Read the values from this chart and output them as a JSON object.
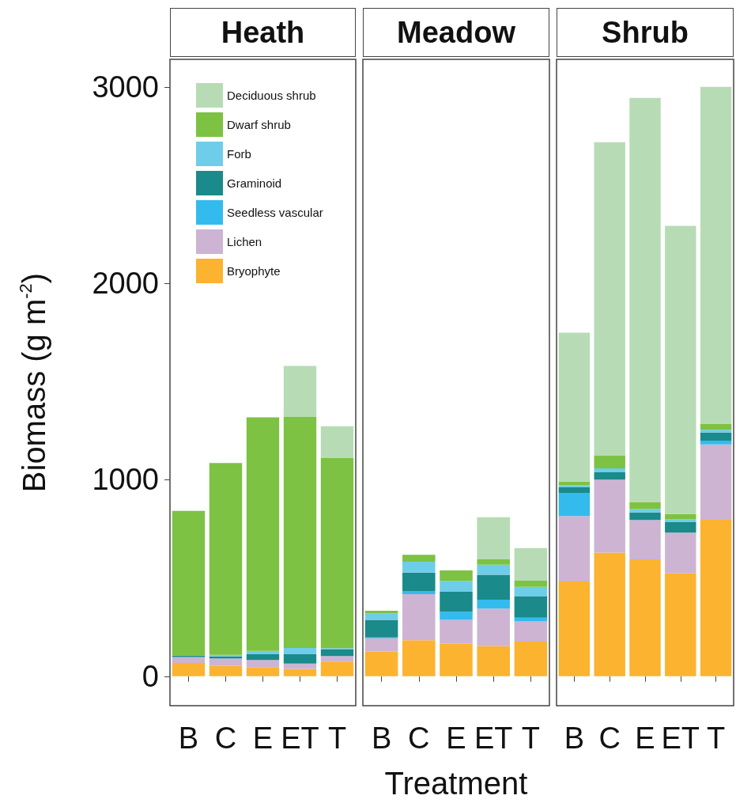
{
  "chart_data": [
    {
      "type": "bar",
      "title": "Heath",
      "ylabel": "Biomass (g m$^{-2}$)",
      "categories": [
        "B",
        "C",
        "E",
        "ET",
        "T"
      ],
      "stacked": true,
      "ylim": [
        -150,
        3140
      ],
      "yticks": [
        0,
        1000,
        2000,
        3000
      ],
      "grid": false,
      "legend": "top",
      "series": [
        {
          "name": "Bryophyte",
          "color": "#fbb330",
          "values": [
            67,
            52,
            46,
            37,
            74
          ]
        },
        {
          "name": "Lichen",
          "color": "#cdb4d2",
          "values": [
            31,
            39,
            37,
            27,
            29
          ]
        },
        {
          "name": "Seedless vascular",
          "color": "#33bbee",
          "values": [
            0,
            0,
            0,
            0,
            0
          ]
        },
        {
          "name": "Graminoid",
          "color": "#1a8a8a",
          "values": [
            8,
            10,
            29,
            48,
            35
          ]
        },
        {
          "name": "Forb",
          "color": "#6ecde8",
          "values": [
            0,
            8,
            17,
            32,
            5
          ]
        },
        {
          "name": "Dwarf shrub",
          "color": "#7dc242",
          "values": [
            736,
            976,
            1189,
            1178,
            969
          ]
        },
        {
          "name": "Deciduous shrub",
          "color": "#b7dcb5",
          "values": [
            0,
            0,
            0,
            258,
            161
          ]
        }
      ]
    },
    {
      "type": "bar",
      "title": "Meadow",
      "xlabel": "Treatment",
      "categories": [
        "B",
        "C",
        "E",
        "ET",
        "T"
      ],
      "stacked": true,
      "ylim": [
        -150,
        3140
      ],
      "yticks": [
        0,
        1000,
        2000,
        3000
      ],
      "grid": false,
      "tick_labels": "x",
      "series": [
        {
          "color": "#fbb330",
          "values": [
            126,
            183,
            165,
            153,
            176
          ]
        },
        {
          "color": "#cdb4d2",
          "values": [
            67,
            235,
            122,
            191,
            103
          ]
        },
        {
          "color": "#33bbee",
          "values": [
            4,
            16,
            41,
            46,
            19
          ]
        },
        {
          "color": "#1a8a8a",
          "values": [
            90,
            94,
            102,
            126,
            110
          ]
        },
        {
          "color": "#6ecde8",
          "values": [
            33,
            55,
            55,
            52,
            47
          ]
        },
        {
          "color": "#7dc242",
          "values": [
            13,
            35,
            54,
            27,
            31
          ]
        },
        {
          "color": "#b7dcb5",
          "values": [
            0,
            0,
            0,
            214,
            166
          ]
        }
      ]
    },
    {
      "type": "bar",
      "title": "Shrub",
      "categories": [
        "B",
        "C",
        "E",
        "ET",
        "T"
      ],
      "stacked": true,
      "ylim": [
        -150,
        3140
      ],
      "yticks": [
        0,
        1000,
        2000,
        3000
      ],
      "grid": false,
      "tick_labels": "x",
      "series": [
        {
          "color": "#fbb330",
          "values": [
            482,
            629,
            595,
            524,
            796
          ]
        },
        {
          "color": "#cdb4d2",
          "values": [
            333,
            372,
            200,
            207,
            384
          ]
        },
        {
          "color": "#33bbee",
          "values": [
            116,
            0,
            0,
            0,
            19
          ]
        },
        {
          "color": "#1a8a8a",
          "values": [
            30,
            37,
            39,
            55,
            41
          ]
        },
        {
          "color": "#6ecde8",
          "values": [
            11,
            20,
            17,
            12,
            14
          ]
        },
        {
          "color": "#7dc242",
          "values": [
            19,
            67,
            36,
            28,
            32
          ]
        },
        {
          "color": "#b7dcb5",
          "values": [
            758,
            1593,
            2057,
            1466,
            1714
          ]
        }
      ]
    }
  ]
}
